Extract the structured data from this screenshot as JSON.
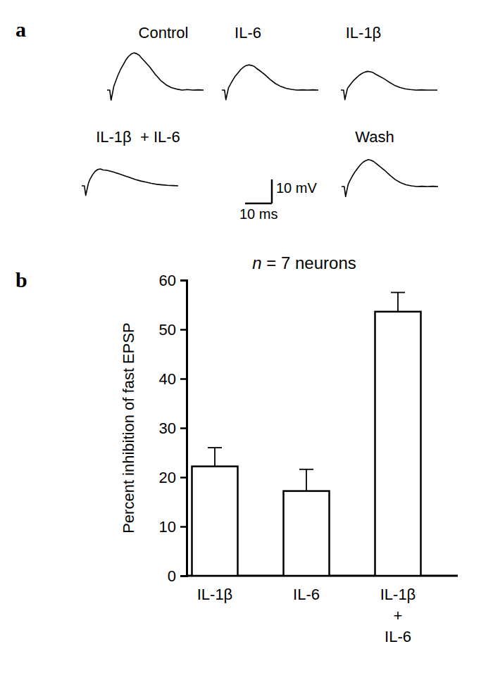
{
  "chart_data": [
    {
      "type": "line",
      "panel": "a",
      "x": [
        0,
        1,
        1.5,
        2,
        2.5,
        3,
        4,
        5,
        6,
        7,
        8,
        9,
        10,
        11,
        12,
        13,
        14,
        16,
        18,
        20,
        22,
        24,
        26,
        28,
        30,
        32,
        34,
        36
      ],
      "series": [
        {
          "name": "Control",
          "color": "#000000",
          "values": [
            0,
            0,
            -4.2,
            -1.5,
            1.5,
            3,
            6,
            8.5,
            10.5,
            12.5,
            14,
            15,
            15.5,
            15.2,
            14.5,
            13.2,
            12,
            9.5,
            6.5,
            4,
            2.2,
            1,
            0.4,
            0,
            0.2,
            0,
            0.1,
            0
          ]
        },
        {
          "name": "IL-6",
          "color": "#000000",
          "values": [
            0,
            0,
            -4,
            -1.5,
            1,
            2,
            4,
            5.8,
            7.1,
            8.5,
            9.5,
            10.2,
            10.5,
            10.3,
            9.9,
            9,
            8.2,
            6.5,
            4.4,
            2.7,
            1.5,
            0.7,
            0.3,
            0,
            0.1,
            0,
            0.1,
            0
          ]
        },
        {
          "name": "IL-1β",
          "color": "#000000",
          "values": [
            0,
            0,
            -4,
            -1.5,
            0.8,
            1.5,
            3,
            4.3,
            5.3,
            6.3,
            7,
            7.5,
            7.8,
            7.6,
            7.3,
            6.6,
            6,
            4.8,
            3.3,
            2,
            1.1,
            0.5,
            0.2,
            0,
            0.1,
            0,
            0,
            0
          ]
        },
        {
          "name": "IL-1β  + IL-6",
          "color": "#000000",
          "values": [
            0,
            0,
            -4,
            -1.5,
            1,
            2.5,
            4.5,
            6,
            6.8,
            7,
            6.6,
            6.5,
            6.3,
            6,
            5.7,
            5.3,
            5,
            4.2,
            3.4,
            2.6,
            2,
            1.5,
            1,
            0.6,
            0.4,
            0.2,
            0.1,
            0
          ]
        },
        {
          "name": "Wash",
          "color": "#000000",
          "values": [
            0,
            0,
            -4.2,
            -1.5,
            1,
            2.2,
            4.3,
            6.1,
            7.6,
            9,
            10.1,
            10.8,
            11.2,
            10.9,
            10.4,
            9.5,
            8.6,
            6.8,
            4.7,
            2.9,
            1.6,
            0.7,
            0.3,
            0,
            0.1,
            0,
            0.1,
            0
          ]
        }
      ],
      "xlim": [
        0,
        36
      ],
      "ylim": [
        -5,
        17
      ],
      "tick_labels": false,
      "scale_bar": {
        "x": 10,
        "x_label": "10 ms",
        "y": 10,
        "y_label": "10 mV"
      }
    },
    {
      "type": "bar",
      "panel": "b",
      "title": "n = 7 neurons",
      "categories": [
        "IL-1β",
        "IL-6",
        "IL-1β + IL-6"
      ],
      "values": [
        22.2,
        17.2,
        53.6
      ],
      "errors": [
        3.8,
        4.4,
        3.9
      ],
      "color": "#ffffff",
      "y_label": "Percent inhibition of fast EPSP",
      "ylim": [
        0,
        60
      ],
      "yticks": [
        0,
        10,
        20,
        30,
        40,
        50,
        60
      ]
    }
  ]
}
